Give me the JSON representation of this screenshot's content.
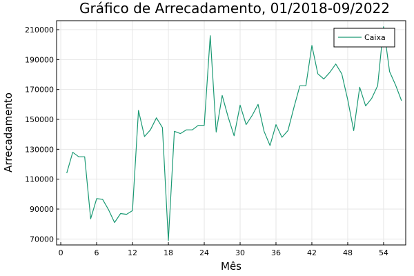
{
  "chart_data": {
    "type": "line",
    "title": "Gráfico de Arrecadamento, 01/2018-09/2022",
    "xlabel": "Mês",
    "ylabel": "Arrecadamento",
    "xlim": [
      -0.7,
      57.7
    ],
    "ylim": [
      66000,
      216000
    ],
    "xticks": [
      0,
      6,
      12,
      18,
      24,
      30,
      36,
      42,
      48,
      54
    ],
    "yticks": [
      70000,
      90000,
      110000,
      130000,
      150000,
      170000,
      190000,
      210000
    ],
    "ytick_labels": [
      "70000",
      "90000",
      "110000",
      "130000",
      "150000",
      "170000",
      "190000",
      "210000"
    ],
    "grid": true,
    "legend_position": "top-right",
    "series": [
      {
        "name": "Caixa",
        "color": "#1a9973",
        "x": [
          1,
          2,
          3,
          4,
          5,
          6,
          7,
          8,
          9,
          10,
          11,
          12,
          13,
          14,
          15,
          16,
          17,
          18,
          19,
          20,
          21,
          22,
          23,
          24,
          25,
          26,
          27,
          28,
          29,
          30,
          31,
          32,
          33,
          34,
          35,
          36,
          37,
          38,
          39,
          40,
          41,
          42,
          43,
          44,
          45,
          46,
          47,
          48,
          49,
          50,
          51,
          52,
          53,
          54,
          55,
          56,
          57
        ],
        "y": [
          114000,
          128000,
          125000,
          125000,
          83500,
          97000,
          96500,
          89500,
          81000,
          87000,
          86500,
          89000,
          156000,
          138500,
          143000,
          151000,
          144500,
          69000,
          142000,
          140500,
          143000,
          143000,
          146000,
          146000,
          206000,
          141500,
          166000,
          151500,
          139000,
          159500,
          146500,
          152500,
          160000,
          142000,
          132500,
          146500,
          138000,
          142500,
          158000,
          172500,
          172500,
          199500,
          180500,
          177000,
          181500,
          187000,
          180500,
          163000,
          142500,
          171500,
          159000,
          164000,
          172500,
          212000,
          182000,
          173000,
          162500
        ]
      }
    ]
  }
}
